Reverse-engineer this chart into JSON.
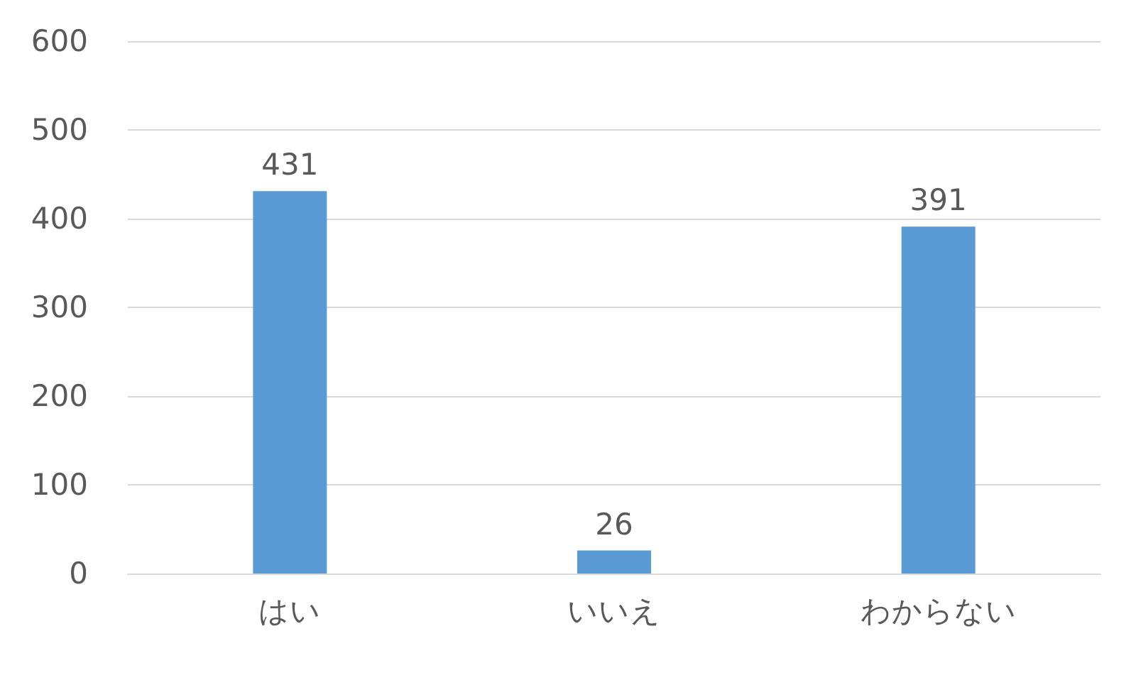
{
  "chart_data": {
    "type": "bar",
    "categories": [
      "はい",
      "いいえ",
      "わからない"
    ],
    "values": [
      431,
      26,
      391
    ],
    "color": "#5b9bd5",
    "ylim": [
      0,
      600
    ],
    "yticks": [
      0,
      100,
      200,
      300,
      400,
      500,
      600
    ],
    "grid": "y",
    "data_labels": true
  }
}
